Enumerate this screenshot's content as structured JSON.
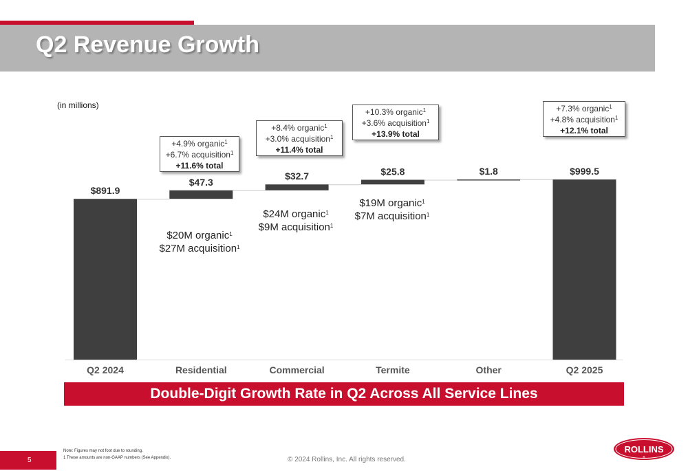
{
  "header": {
    "title": "Q2 Revenue Growth"
  },
  "chart_data": {
    "type": "bar",
    "units_label": "(in millions)",
    "categories": [
      "Q2 2024",
      "Residential",
      "Commercial",
      "Termite",
      "Other",
      "Q2 2025"
    ],
    "values": [
      891.9,
      47.3,
      32.7,
      25.8,
      1.8,
      999.5
    ],
    "value_labels": [
      "$891.9",
      "$47.3",
      "$32.7",
      "$25.8",
      "$1.8",
      "$999.5"
    ],
    "bar_kinds": [
      "total",
      "delta",
      "delta",
      "delta",
      "delta",
      "total"
    ],
    "bar_color": "#3f3f3f",
    "connector_color": "#cccccc"
  },
  "callouts": [
    {
      "organic": "+4.9% organic",
      "acquisition": "+6.7% acquisition",
      "total": "+11.6% total",
      "sup": "1"
    },
    {
      "organic": "+8.4% organic",
      "acquisition": "+3.0% acquisition",
      "total": "+11.4% total",
      "sup": "1"
    },
    {
      "organic": "+10.3% organic",
      "acquisition": "+3.6% acquisition",
      "total": "+13.9% total",
      "sup": "1"
    },
    {
      "organic": "+7.3% organic",
      "acquisition": "+4.8% acquisition",
      "total": "+12.1% total",
      "sup": "1"
    }
  ],
  "bar_notes": [
    {
      "line1": "$20M organic",
      "line2": "$27M acquisition",
      "sup": "1"
    },
    {
      "line1": "$24M organic",
      "line2": "$9M acquisition",
      "sup": "1"
    },
    {
      "line1": "$19M organic",
      "line2": "$7M acquisition",
      "sup": "1"
    }
  ],
  "banner": "Double-Digit Growth Rate in Q2 Across All Service Lines",
  "footer": {
    "page_number": "5",
    "note1": "Note: Figures may not foot due to rounding.",
    "note2": "1 These amounts are non-GAAP numbers (See Appendix).",
    "copyright": "© 2024 Rollins, Inc. All rights reserved.",
    "logo_text": "ROLLINS",
    "logo_mark": "®"
  },
  "colors": {
    "brand_red": "#c8102e",
    "title_bar": "#b4b4b4"
  }
}
